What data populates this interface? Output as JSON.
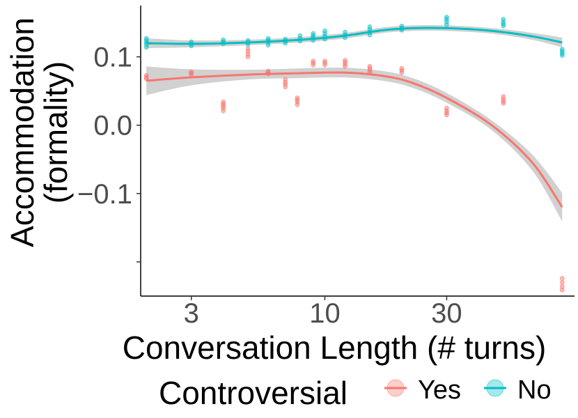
{
  "chart_data": {
    "type": "scatter",
    "x_scale": "log",
    "xlabel": "Conversation Length (# turns)",
    "ylabel_lines": [
      "Accommodation",
      "(formality)"
    ],
    "x_ticks": [
      3,
      10,
      30
    ],
    "x_tick_labels": [
      "3",
      "10",
      "30"
    ],
    "y_ticks": [
      0.1,
      0.0,
      -0.1
    ],
    "y_tick_labels": [
      "0.1",
      "0.0",
      "−0.1"
    ],
    "xlim": [
      1.9,
      95
    ],
    "ylim": [
      -0.25,
      0.175
    ],
    "grid": false,
    "legend": {
      "title": "Controversial",
      "position": "bottom",
      "entries": [
        "Yes",
        "No"
      ]
    },
    "series": [
      {
        "name": "Yes",
        "color": "#F8766D",
        "points": [
          {
            "x": 2,
            "y": [
              0.073,
              0.07,
              0.068
            ]
          },
          {
            "x": 3,
            "y": [
              0.078,
              0.076,
              0.074
            ]
          },
          {
            "x": 4,
            "y": [
              0.034,
              0.031,
              0.028,
              0.025,
              0.021
            ]
          },
          {
            "x": 5,
            "y": [
              0.112,
              0.108,
              0.104,
              0.1
            ]
          },
          {
            "x": 6,
            "y": [
              0.079,
              0.077,
              0.075
            ]
          },
          {
            "x": 7,
            "y": [
              0.067,
              0.063,
              0.06,
              0.056
            ]
          },
          {
            "x": 7.8,
            "y": [
              0.04,
              0.037,
              0.034,
              0.03
            ]
          },
          {
            "x": 9,
            "y": [
              0.094,
              0.091,
              0.088
            ]
          },
          {
            "x": 10,
            "y": [
              0.094,
              0.091,
              0.088
            ]
          },
          {
            "x": 12,
            "y": [
              0.095,
              0.092,
              0.089,
              0.086
            ]
          },
          {
            "x": 15,
            "y": [
              0.086,
              0.083,
              0.08,
              0.077
            ]
          },
          {
            "x": 20,
            "y": [
              0.083,
              0.08,
              0.077
            ]
          },
          {
            "x": 30,
            "y": [
              0.025,
              0.021,
              0.018,
              0.015
            ]
          },
          {
            "x": 50,
            "y": [
              0.042,
              0.038,
              0.035,
              0.032
            ]
          },
          {
            "x": 85,
            "y": [
              -0.224,
              -0.23,
              -0.236,
              -0.241
            ]
          }
        ],
        "smooth": [
          [
            2,
            0.065
          ],
          [
            3,
            0.07
          ],
          [
            5,
            0.074
          ],
          [
            8,
            0.076
          ],
          [
            12,
            0.077
          ],
          [
            17,
            0.072
          ],
          [
            22,
            0.062
          ],
          [
            30,
            0.04
          ],
          [
            45,
            0.0
          ],
          [
            65,
            -0.055
          ],
          [
            85,
            -0.12
          ]
        ]
      },
      {
        "name": "No",
        "color": "#00BFC4",
        "points": [
          {
            "x": 2,
            "y": [
              0.127,
              0.124,
              0.121,
              0.118,
              0.114
            ]
          },
          {
            "x": 3,
            "y": [
              0.122,
              0.119,
              0.116
            ]
          },
          {
            "x": 4,
            "y": [
              0.125,
              0.122,
              0.119
            ]
          },
          {
            "x": 5,
            "y": [
              0.124,
              0.121,
              0.118
            ]
          },
          {
            "x": 6,
            "y": [
              0.127,
              0.124,
              0.121,
              0.117
            ]
          },
          {
            "x": 7,
            "y": [
              0.126,
              0.123,
              0.12
            ]
          },
          {
            "x": 8,
            "y": [
              0.131,
              0.127,
              0.123
            ]
          },
          {
            "x": 9,
            "y": [
              0.134,
              0.131,
              0.128,
              0.124
            ]
          },
          {
            "x": 10,
            "y": [
              0.138,
              0.134,
              0.13,
              0.126
            ]
          },
          {
            "x": 12,
            "y": [
              0.136,
              0.132,
              0.128
            ]
          },
          {
            "x": 15,
            "y": [
              0.144,
              0.14,
              0.136,
              0.132
            ]
          },
          {
            "x": 20,
            "y": [
              0.145,
              0.142,
              0.139
            ]
          },
          {
            "x": 30,
            "y": [
              0.158,
              0.155,
              0.151,
              0.147
            ]
          },
          {
            "x": 50,
            "y": [
              0.155,
              0.151,
              0.148,
              0.145
            ]
          },
          {
            "x": 85,
            "y": [
              0.111,
              0.108,
              0.105,
              0.102
            ]
          }
        ],
        "smooth": [
          [
            2,
            0.12
          ],
          [
            3,
            0.119
          ],
          [
            5,
            0.121
          ],
          [
            8,
            0.125
          ],
          [
            12,
            0.131
          ],
          [
            17,
            0.139
          ],
          [
            22,
            0.142
          ],
          [
            30,
            0.142
          ],
          [
            45,
            0.138
          ],
          [
            65,
            0.13
          ],
          [
            85,
            0.121
          ]
        ]
      }
    ]
  }
}
